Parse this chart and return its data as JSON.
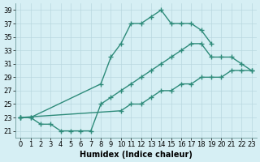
{
  "line1_x": [
    0,
    1,
    8,
    9,
    10,
    11,
    12,
    13,
    14,
    15,
    16,
    17,
    18,
    19
  ],
  "line1_y": [
    23,
    23,
    28,
    32,
    34,
    37,
    37,
    38,
    39,
    37,
    37,
    37,
    36,
    34
  ],
  "line2_x": [
    0,
    1,
    2,
    3,
    4,
    5,
    6,
    7,
    8,
    9,
    10,
    11,
    12,
    13,
    14,
    15,
    16,
    17,
    18,
    19,
    20,
    21,
    22,
    23
  ],
  "line2_y": [
    23,
    23,
    22,
    22,
    21,
    21,
    21,
    21,
    25,
    26,
    27,
    28,
    29,
    30,
    31,
    32,
    33,
    34,
    34,
    32,
    32,
    32,
    31,
    30
  ],
  "line3_x": [
    0,
    10,
    11,
    12,
    13,
    14,
    15,
    16,
    17,
    18,
    19,
    20,
    21,
    22,
    23
  ],
  "line3_y": [
    23,
    24,
    25,
    25,
    26,
    27,
    27,
    28,
    28,
    29,
    29,
    29,
    30,
    30,
    30
  ],
  "color": "#2e8b7a",
  "bg_color": "#d6eff4",
  "grid_color": "#b8d8df",
  "xlabel": "Humidex (Indice chaleur)",
  "ylim": [
    20,
    40
  ],
  "xlim": [
    -0.5,
    23.5
  ],
  "yticks": [
    21,
    23,
    25,
    27,
    29,
    31,
    33,
    35,
    37,
    39
  ],
  "xticks": [
    0,
    1,
    2,
    3,
    4,
    5,
    6,
    7,
    8,
    9,
    10,
    11,
    12,
    13,
    14,
    15,
    16,
    17,
    18,
    19,
    20,
    21,
    22,
    23
  ],
  "marker": "+",
  "markersize": 4,
  "linewidth": 1.0,
  "xlabel_fontsize": 7,
  "tick_fontsize": 6
}
